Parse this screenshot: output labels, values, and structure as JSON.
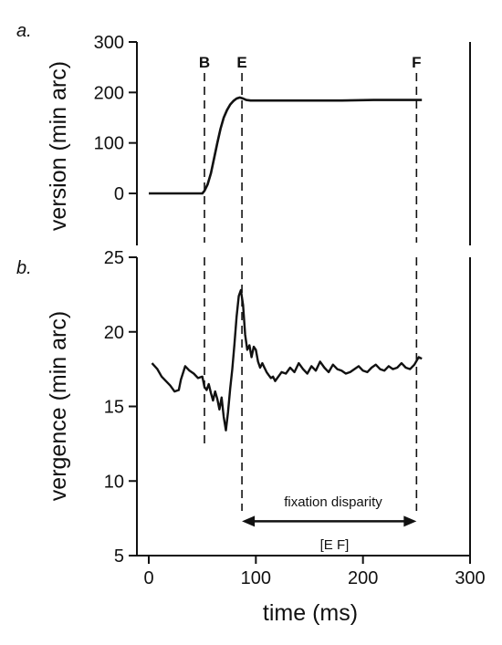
{
  "chart_data": [
    {
      "panel": "a.",
      "type": "line",
      "ylabel": "version (min arc)",
      "ylim": [
        0,
        300
      ],
      "yticks": [
        0,
        100,
        200,
        300
      ],
      "xlim": [
        0,
        300
      ],
      "series": [
        {
          "x": [
            0,
            50,
            52,
            55,
            58,
            61,
            64,
            67,
            70,
            73,
            76,
            79,
            82,
            85,
            88,
            91,
            95,
            100,
            120,
            150,
            180,
            210,
            240,
            255
          ],
          "y": [
            0,
            0,
            5,
            18,
            40,
            70,
            100,
            128,
            150,
            165,
            176,
            183,
            188,
            190,
            188,
            185,
            184,
            184,
            184,
            184,
            184,
            185,
            185,
            185
          ]
        }
      ],
      "markers": [
        {
          "label": "B",
          "x": 52
        },
        {
          "label": "E",
          "x": 87
        },
        {
          "label": "F",
          "x": 250
        }
      ]
    },
    {
      "panel": "b.",
      "type": "line",
      "ylabel": "vergence (min arc)",
      "xlabel": "time (ms)",
      "ylim": [
        5,
        25
      ],
      "yticks": [
        5,
        10,
        15,
        20,
        25
      ],
      "xlim": [
        0,
        300
      ],
      "xticks": [
        0,
        100,
        200,
        300
      ],
      "series": [
        {
          "x": [
            3,
            8,
            12,
            16,
            20,
            24,
            28,
            30,
            34,
            38,
            42,
            46,
            50,
            52,
            54,
            56,
            58,
            60,
            62,
            64,
            66,
            68,
            70,
            72,
            74,
            76,
            78,
            80,
            82,
            84,
            86,
            88,
            90,
            92,
            94,
            96,
            98,
            100,
            102,
            104,
            106,
            108,
            110,
            112,
            114,
            116,
            118,
            120,
            124,
            128,
            132,
            136,
            140,
            144,
            148,
            152,
            156,
            160,
            164,
            168,
            172,
            176,
            180,
            184,
            188,
            192,
            196,
            200,
            204,
            208,
            212,
            216,
            220,
            224,
            228,
            232,
            236,
            240,
            244,
            248,
            252,
            255
          ],
          "y": [
            17.9,
            17.5,
            17.0,
            16.7,
            16.4,
            16.0,
            16.1,
            16.8,
            17.7,
            17.4,
            17.2,
            16.9,
            17.0,
            16.3,
            16.1,
            16.5,
            15.9,
            15.4,
            16.0,
            15.5,
            14.8,
            15.6,
            14.3,
            13.4,
            14.6,
            16.2,
            17.5,
            19.2,
            21.0,
            22.4,
            22.8,
            21.8,
            19.8,
            18.8,
            19.1,
            18.3,
            19.0,
            18.8,
            18.0,
            17.6,
            17.9,
            17.6,
            17.3,
            17.1,
            16.9,
            17.0,
            16.7,
            16.9,
            17.3,
            17.2,
            17.6,
            17.3,
            17.9,
            17.5,
            17.2,
            17.7,
            17.4,
            18.0,
            17.6,
            17.3,
            17.8,
            17.5,
            17.4,
            17.2,
            17.3,
            17.5,
            17.7,
            17.4,
            17.3,
            17.6,
            17.8,
            17.5,
            17.4,
            17.7,
            17.5,
            17.6,
            17.9,
            17.6,
            17.5,
            17.8,
            18.3,
            18.2
          ]
        }
      ],
      "annotations": [
        {
          "text": "fixation disparity",
          "x": 150,
          "y": 8.6
        },
        {
          "text": "[E F]",
          "x": 170,
          "y": 5.8
        }
      ],
      "interval": {
        "from": 87,
        "to": 250,
        "y": 7.3
      }
    }
  ]
}
